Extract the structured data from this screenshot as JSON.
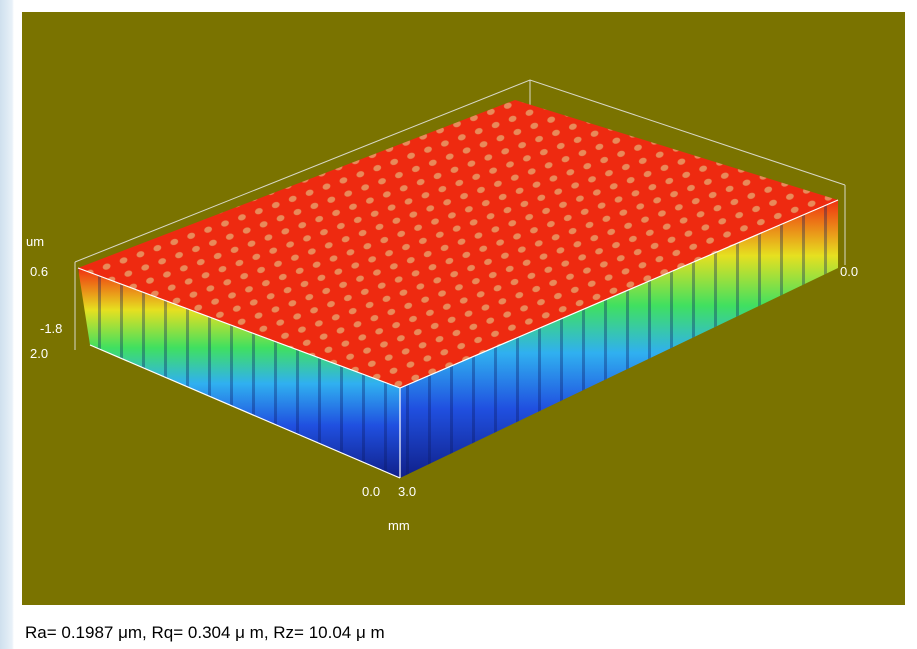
{
  "axis_labels": {
    "z_unit": "um",
    "z_max": "0.6",
    "z_min": "-1.8",
    "y_end": "2.0",
    "x_right": "0.0",
    "x_start": "0.0",
    "x_end": "3.0",
    "x_unit": "mm"
  },
  "caption": "Ra= 0.1987 μm, Rq= 0.304 μ m, Rz= 10.04 μ m"
}
